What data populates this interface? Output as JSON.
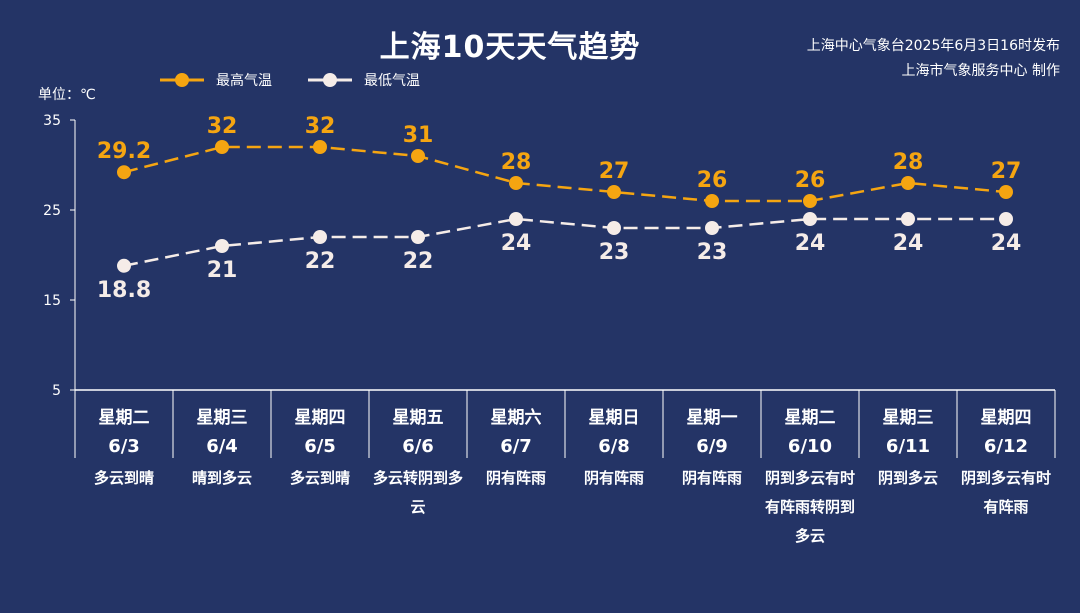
{
  "header": {
    "title": "上海10天天气趋势",
    "source_line1": "上海中心气象台2025年6月3日16时发布",
    "source_line2": "上海市气象服务中心 制作",
    "unit": "单位：℃"
  },
  "chart_data": {
    "type": "line",
    "title": "上海10天天气趋势",
    "ylabel": "单位：℃",
    "ylim": [
      5,
      35
    ],
    "yticks": [
      5,
      15,
      25,
      35
    ],
    "grid": false,
    "legend_position": "top-left",
    "days": [
      "星期二",
      "星期三",
      "星期四",
      "星期五",
      "星期六",
      "星期日",
      "星期一",
      "星期二",
      "星期三",
      "星期四"
    ],
    "categories": [
      "6/3",
      "6/4",
      "6/5",
      "6/6",
      "6/7",
      "6/8",
      "6/9",
      "6/10",
      "6/11",
      "6/12"
    ],
    "weather": [
      "多云到晴",
      "晴到多云",
      "多云到晴",
      "多云转阴到多云",
      "阴有阵雨",
      "阴有阵雨",
      "阴有阵雨",
      "阴到多云有时有阵雨转阴到多云",
      "阴到多云",
      "阴到多云有时有阵雨"
    ],
    "series": [
      {
        "name": "最高气温",
        "color": "#f5a511",
        "values": [
          29.2,
          32,
          32,
          31,
          28,
          27,
          26,
          26,
          28,
          27
        ]
      },
      {
        "name": "最低气温",
        "color": "#f5ece8",
        "values": [
          18.8,
          21,
          22,
          22,
          24,
          23,
          23,
          24,
          24,
          24
        ]
      }
    ]
  }
}
